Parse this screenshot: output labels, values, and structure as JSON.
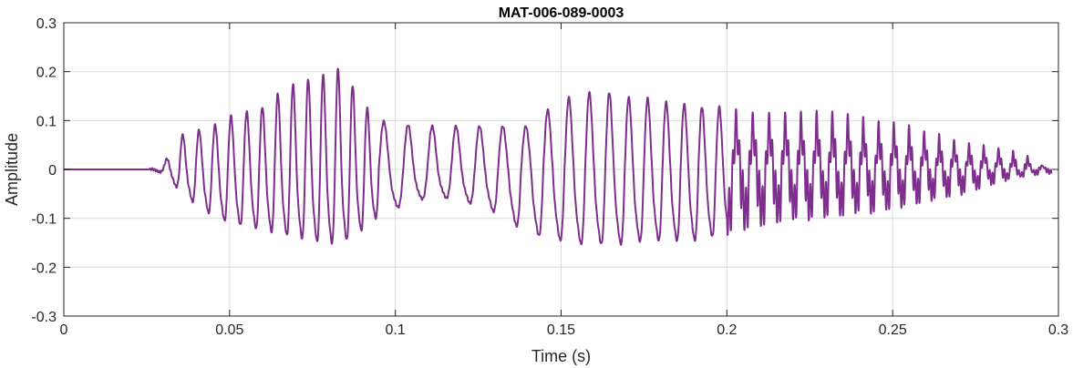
{
  "chart_data": {
    "type": "line",
    "title": "MAT-006-089-0003",
    "xlabel": "Time (s)",
    "ylabel": "Amplitude",
    "xlim": [
      0,
      0.3
    ],
    "ylim": [
      -0.3,
      0.3
    ],
    "xticks": [
      0,
      0.05,
      0.1,
      0.15,
      0.2,
      0.25,
      0.3
    ],
    "yticks": [
      -0.3,
      -0.2,
      -0.1,
      0,
      0.1,
      0.2,
      0.3
    ],
    "xtick_labels": [
      "0",
      "0.05",
      "0.1",
      "0.15",
      "0.2",
      "0.25",
      "0.3"
    ],
    "ytick_labels": [
      "-0.3",
      "-0.2",
      "-0.1",
      "0",
      "0.1",
      "0.2",
      "0.3"
    ],
    "grid": true,
    "line_color": "#7E2F8E",
    "series": [
      {
        "x": [
          0,
          0.01,
          0.02,
          0.026,
          0.03,
          0.035,
          0.04,
          0.045,
          0.05,
          0.055,
          0.06,
          0.065,
          0.07,
          0.075,
          0.08,
          0.083,
          0.085,
          0.09,
          0.095,
          0.1,
          0.105,
          0.11,
          0.115,
          0.12,
          0.125,
          0.13,
          0.135,
          0.14,
          0.145,
          0.15,
          0.155,
          0.16,
          0.165,
          0.17,
          0.175,
          0.18,
          0.185,
          0.19,
          0.195,
          0.2,
          0.205,
          0.21,
          0.215,
          0.22,
          0.225,
          0.23,
          0.235,
          0.24,
          0.245,
          0.25,
          0.255,
          0.26,
          0.265,
          0.27,
          0.275,
          0.28,
          0.285,
          0.29,
          0.295,
          0.298
        ],
        "values": [
          0,
          0,
          0,
          0,
          0.01,
          0.07,
          0.08,
          0.09,
          0.11,
          0.12,
          0.13,
          0.16,
          0.18,
          0.19,
          0.2,
          0.21,
          0.2,
          0.14,
          0.1,
          0.1,
          0.09,
          0.09,
          0.09,
          0.09,
          0.09,
          0.09,
          0.09,
          0.09,
          0.12,
          0.14,
          0.16,
          0.16,
          0.16,
          0.15,
          0.15,
          0.14,
          0.14,
          0.13,
          0.13,
          0.13,
          0.12,
          0.12,
          0.12,
          0.12,
          0.12,
          0.12,
          0.12,
          0.11,
          0.1,
          0.1,
          0.09,
          0.08,
          0.07,
          0.06,
          0.05,
          0.05,
          0.04,
          0.03,
          0.01,
          0.01
        ]
      }
    ],
    "series_min_envelope": [
      0,
      0,
      0,
      0,
      -0.01,
      -0.06,
      -0.1,
      -0.13,
      -0.15,
      -0.16,
      -0.17,
      -0.18,
      -0.19,
      -0.2,
      -0.21,
      -0.2,
      -0.2,
      -0.17,
      -0.13,
      -0.11,
      -0.09,
      -0.08,
      -0.08,
      -0.09,
      -0.1,
      -0.12,
      -0.15,
      -0.18,
      -0.19,
      -0.2,
      -0.21,
      -0.21,
      -0.21,
      -0.21,
      -0.2,
      -0.2,
      -0.2,
      -0.2,
      -0.19,
      -0.18,
      -0.17,
      -0.16,
      -0.15,
      -0.14,
      -0.14,
      -0.13,
      -0.13,
      -0.12,
      -0.12,
      -0.11,
      -0.1,
      -0.09,
      -0.08,
      -0.07,
      -0.06,
      -0.04,
      -0.03,
      -0.02,
      -0.01,
      -0.01
    ]
  }
}
